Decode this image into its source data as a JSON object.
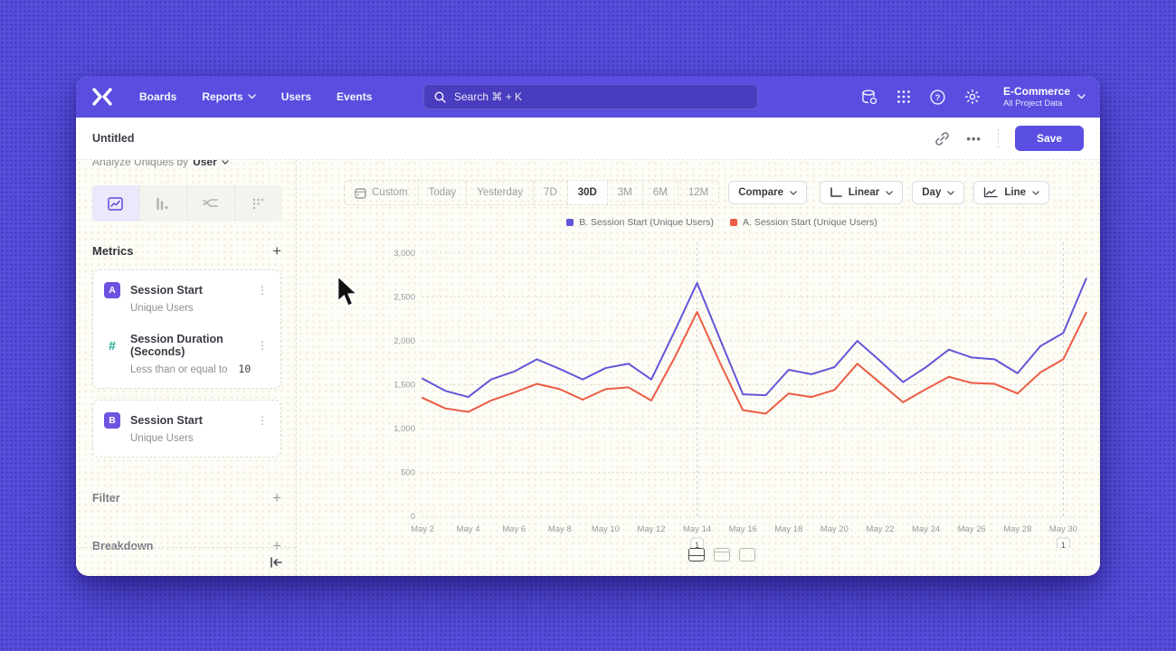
{
  "navbar": {
    "logo": "mixpanel-logo",
    "items": [
      {
        "label": "Boards"
      },
      {
        "label": "Reports",
        "has_chevron": true
      },
      {
        "label": "Users"
      },
      {
        "label": "Events"
      }
    ],
    "search": {
      "placeholder": "Search  ⌘ + K"
    },
    "project": {
      "name": "E-Commerce",
      "subtitle": "All Project Data"
    }
  },
  "header": {
    "title": "Untitled",
    "more_label": "•••",
    "save_label": "Save"
  },
  "sidebar": {
    "analyze_label": "Analyze Uniques by",
    "analyze_value": "User",
    "metrics_title": "Metrics",
    "metrics": [
      {
        "badge": "A",
        "name": "Session Start",
        "subtitle": "Unique Users"
      },
      {
        "badge": "#",
        "name": "Session Duration (Seconds)",
        "condition_label": "Less than or equal to",
        "condition_value": "10"
      },
      {
        "badge": "B",
        "name": "Session Start",
        "subtitle": "Unique Users"
      }
    ],
    "sections": [
      {
        "label": "Filter"
      },
      {
        "label": "Breakdown"
      }
    ]
  },
  "toolbar": {
    "ranges": [
      "Custom",
      "Today",
      "Yesterday",
      "7D",
      "30D",
      "3M",
      "6M",
      "12M"
    ],
    "active_range": "30D",
    "compare_label": "Compare",
    "scale_label": "Linear",
    "interval_label": "Day",
    "chart_type_label": "Line"
  },
  "chart_data": {
    "type": "line",
    "x": [
      "May 2",
      "May 3",
      "May 4",
      "May 5",
      "May 6",
      "May 7",
      "May 8",
      "May 9",
      "May 10",
      "May 11",
      "May 12",
      "May 13",
      "May 14",
      "May 15",
      "May 16",
      "May 17",
      "May 18",
      "May 19",
      "May 20",
      "May 21",
      "May 22",
      "May 23",
      "May 24",
      "May 25",
      "May 26",
      "May 27",
      "May 28",
      "May 29",
      "May 30",
      "May 31"
    ],
    "series": [
      {
        "name": "B. Session Start (Unique Users)",
        "color": "#6156d8",
        "values": [
          1570,
          1430,
          1360,
          1560,
          1650,
          1790,
          1680,
          1560,
          1690,
          1740,
          1560,
          2100,
          2660,
          2020,
          1390,
          1380,
          1670,
          1620,
          1700,
          2000,
          1770,
          1530,
          1700,
          1900,
          1810,
          1790,
          1630,
          1940,
          2090,
          2710
        ]
      },
      {
        "name": "A. Session Start (Unique Users)",
        "color": "#ec5c44",
        "values": [
          1350,
          1230,
          1190,
          1320,
          1410,
          1510,
          1450,
          1330,
          1450,
          1470,
          1320,
          1800,
          2330,
          1750,
          1210,
          1170,
          1400,
          1360,
          1440,
          1740,
          1520,
          1300,
          1450,
          1590,
          1520,
          1510,
          1400,
          1640,
          1790,
          2320
        ]
      }
    ],
    "ylim": [
      0,
      3000
    ],
    "yticks": [
      0,
      500,
      1000,
      1500,
      2000,
      2500,
      3000
    ],
    "ytick_labels": [
      "0",
      "500",
      "1,000",
      "1,500",
      "2,000",
      "2,500",
      "3,000"
    ],
    "xtick_indices": [
      0,
      2,
      4,
      6,
      8,
      10,
      12,
      14,
      16,
      18,
      20,
      22,
      24,
      26,
      28
    ],
    "grid": "horizontal-dotted",
    "legend_position": "top-center",
    "annotations": [
      {
        "x_index": 12,
        "label": "1"
      },
      {
        "x_index": 28,
        "label": "1"
      }
    ]
  }
}
